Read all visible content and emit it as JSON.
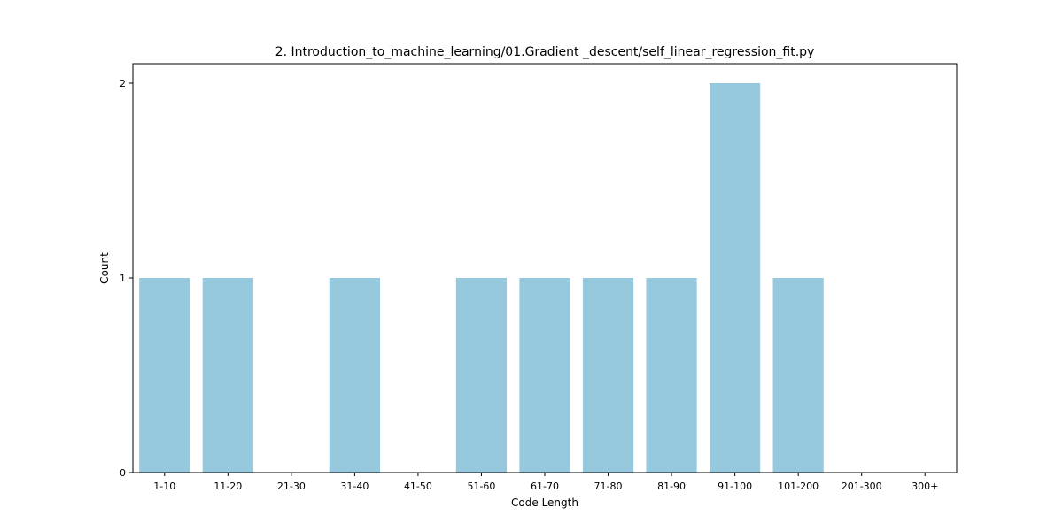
{
  "chart_data": {
    "type": "bar",
    "title": "2. Introduction_to_machine_learning/01.Gradient _descent/self_linear_regression_fit.py",
    "xlabel": "Code Length",
    "ylabel": "Count",
    "categories": [
      "1-10",
      "11-20",
      "21-30",
      "31-40",
      "41-50",
      "51-60",
      "61-70",
      "71-80",
      "81-90",
      "91-100",
      "101-200",
      "201-300",
      "300+"
    ],
    "values": [
      1,
      1,
      0,
      1,
      0,
      1,
      1,
      1,
      1,
      2,
      1,
      0,
      0
    ],
    "ylim": [
      0,
      2.1
    ],
    "yticks": [
      0,
      1,
      2
    ],
    "bar_color": "#96c9de",
    "grid": false,
    "legend": "none"
  }
}
